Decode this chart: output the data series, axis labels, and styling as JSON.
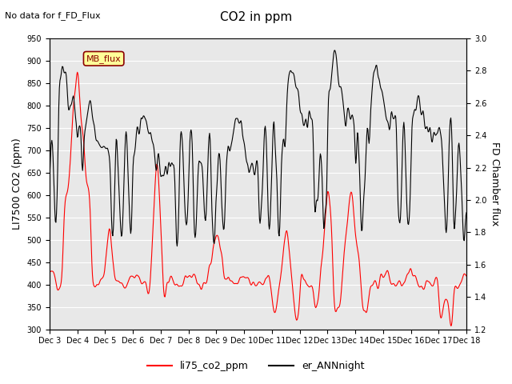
{
  "title": "CO2 in ppm",
  "top_left_text": "No data for f_FD_Flux",
  "ylabel_left": "LI7500 CO2 (ppm)",
  "ylabel_right": "FD Chamber flux",
  "ylim_left": [
    300,
    950
  ],
  "ylim_right": [
    1.2,
    3.0
  ],
  "yticks_left": [
    300,
    350,
    400,
    450,
    500,
    550,
    600,
    650,
    700,
    750,
    800,
    850,
    900,
    950
  ],
  "yticks_right": [
    1.2,
    1.4,
    1.6,
    1.8,
    2.0,
    2.2,
    2.4,
    2.6,
    2.8,
    3.0
  ],
  "color_red": "#FF0000",
  "color_black": "#000000",
  "color_bg": "#E8E8E8",
  "legend_red": "li75_co2_ppm",
  "legend_black": "er_ANNnight",
  "mb_flux_box_color": "#FFFF99",
  "mb_flux_box_edge": "#8B0000",
  "mb_flux_label": "MB_flux",
  "xticklabels": [
    "Dec 3",
    "Dec 4",
    "Dec 5",
    "Dec 6",
    "Dec 7",
    "Dec 8",
    "Dec 9",
    "Dec 10",
    "Dec 11",
    "Dec 12",
    "Dec 13",
    "Dec 14",
    "Dec 15",
    "Dec 16",
    "Dec 17",
    "Dec 18"
  ]
}
